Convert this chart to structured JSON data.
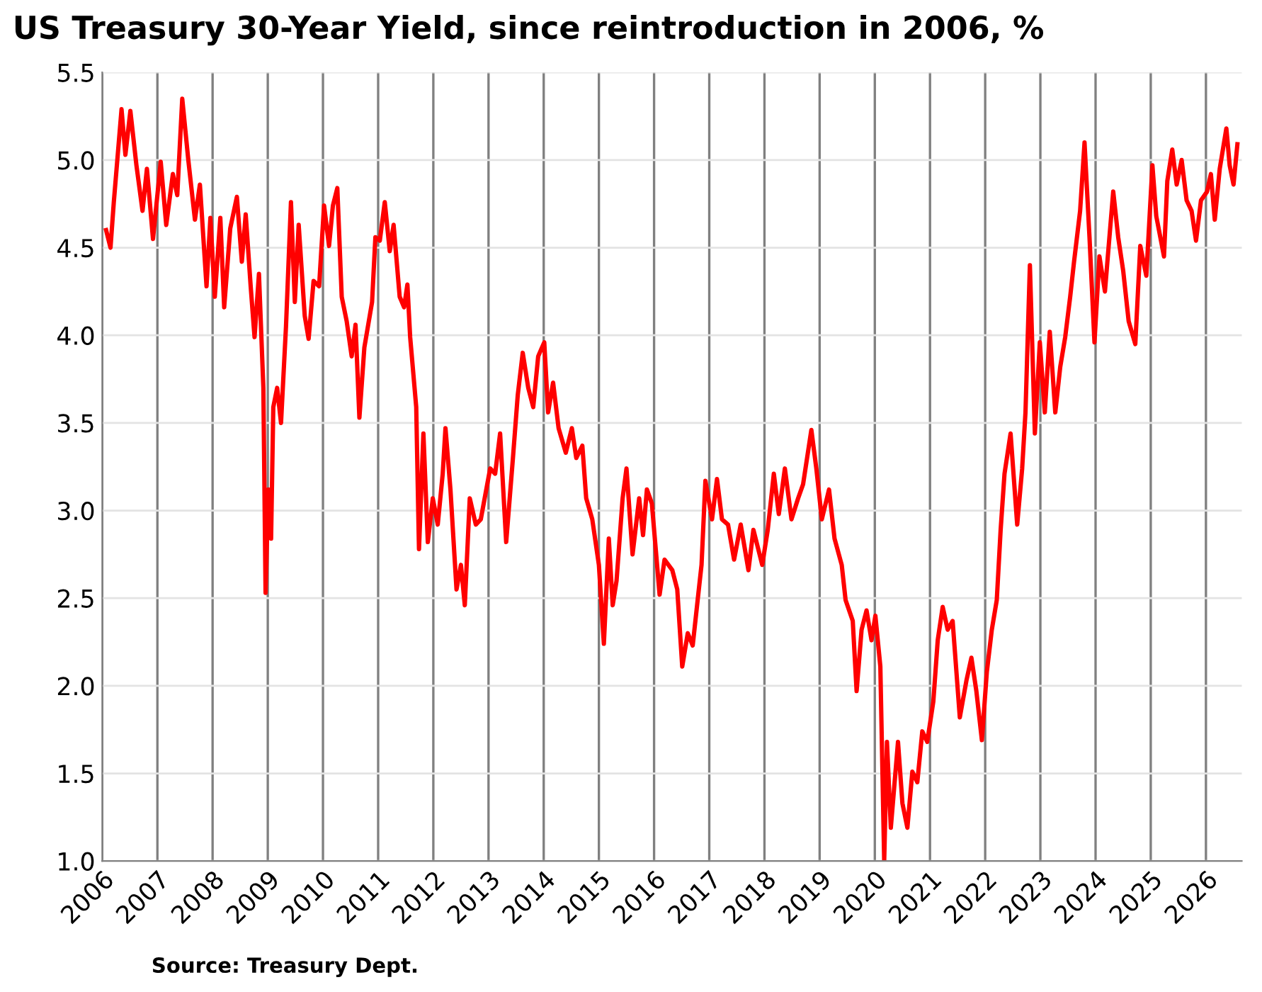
{
  "chart_data": {
    "type": "line",
    "title": "US Treasury 30-Year Yield, since reintroduction in 2006, %",
    "annotations": [
      "Source: Treasury Dept."
    ],
    "x": [
      2006.07,
      2006.15,
      2006.21,
      2006.35,
      2006.42,
      2006.51,
      2006.62,
      2006.73,
      2006.81,
      2006.92,
      2007.06,
      2007.16,
      2007.28,
      2007.36,
      2007.45,
      2007.56,
      2007.68,
      2007.77,
      2007.89,
      2007.96,
      2008.04,
      2008.14,
      2008.21,
      2008.32,
      2008.44,
      2008.53,
      2008.6,
      2008.69,
      2008.76,
      2008.84,
      2008.92,
      2008.96,
      2009.01,
      2009.06,
      2009.1,
      2009.17,
      2009.24,
      2009.33,
      2009.42,
      2009.49,
      2009.56,
      2009.67,
      2009.74,
      2009.83,
      2009.93,
      2010.02,
      2010.11,
      2010.18,
      2010.26,
      2010.34,
      2010.43,
      2010.52,
      2010.59,
      2010.66,
      2010.75,
      2010.89,
      2010.95,
      2011.03,
      2011.12,
      2011.21,
      2011.28,
      2011.39,
      2011.47,
      2011.53,
      2011.58,
      2011.69,
      2011.74,
      2011.82,
      2011.9,
      2011.99,
      2012.08,
      2012.17,
      2012.22,
      2012.31,
      2012.42,
      2012.5,
      2012.57,
      2012.66,
      2012.77,
      2012.86,
      2013.03,
      2013.12,
      2013.21,
      2013.32,
      2013.44,
      2013.53,
      2013.62,
      2013.72,
      2013.81,
      2013.9,
      2014.01,
      2014.08,
      2014.17,
      2014.27,
      2014.4,
      2014.51,
      2014.59,
      2014.7,
      2014.77,
      2014.88,
      2015.0,
      2015.09,
      2015.18,
      2015.25,
      2015.32,
      2015.43,
      2015.5,
      2015.61,
      2015.73,
      2015.8,
      2015.87,
      2015.96,
      2016.1,
      2016.19,
      2016.33,
      2016.42,
      2016.51,
      2016.61,
      2016.7,
      2016.79,
      2016.86,
      2016.93,
      2017.05,
      2017.14,
      2017.23,
      2017.34,
      2017.45,
      2017.57,
      2017.71,
      2017.8,
      2017.96,
      2018.06,
      2018.17,
      2018.26,
      2018.37,
      2018.49,
      2018.61,
      2018.7,
      2018.85,
      2018.94,
      2019.04,
      2019.17,
      2019.27,
      2019.4,
      2019.47,
      2019.6,
      2019.67,
      2019.76,
      2019.85,
      2019.94,
      2020.01,
      2020.1,
      2020.17,
      2020.22,
      2020.29,
      2020.42,
      2020.5,
      2020.59,
      2020.68,
      2020.77,
      2020.86,
      2020.95,
      2021.06,
      2021.14,
      2021.23,
      2021.32,
      2021.41,
      2021.54,
      2021.66,
      2021.75,
      2021.84,
      2021.94,
      2022.03,
      2022.12,
      2022.21,
      2022.28,
      2022.35,
      2022.46,
      2022.58,
      2022.67,
      2022.73,
      2022.81,
      2022.9,
      2022.99,
      2023.08,
      2023.17,
      2023.27,
      2023.36,
      2023.45,
      2023.54,
      2023.61,
      2023.72,
      2023.8,
      2023.89,
      2023.98,
      2024.07,
      2024.17,
      2024.23,
      2024.32,
      2024.41,
      2024.5,
      2024.6,
      2024.72,
      2024.81,
      2024.92,
      2025.03,
      2025.1,
      2025.24,
      2025.3,
      2025.39,
      2025.47,
      2025.56,
      2025.65,
      2025.74,
      2025.82,
      2025.91,
      2026.02,
      2026.09,
      2026.16,
      2026.25,
      2026.37,
      2026.43,
      2026.5,
      2026.57
    ],
    "series": [
      {
        "color": "#ff0000",
        "values": [
          4.6,
          4.5,
          4.76,
          5.29,
          5.03,
          5.28,
          4.97,
          4.71,
          4.95,
          4.55,
          4.99,
          4.63,
          4.92,
          4.8,
          5.35,
          5.0,
          4.66,
          4.86,
          4.28,
          4.67,
          4.22,
          4.67,
          4.16,
          4.61,
          4.79,
          4.42,
          4.69,
          4.28,
          3.99,
          4.35,
          3.7,
          2.53,
          3.12,
          2.84,
          3.59,
          3.7,
          3.5,
          4.05,
          4.76,
          4.19,
          4.63,
          4.11,
          3.98,
          4.31,
          4.28,
          4.74,
          4.51,
          4.74,
          4.84,
          4.22,
          4.08,
          3.88,
          4.06,
          3.53,
          3.93,
          4.19,
          4.56,
          4.54,
          4.76,
          4.48,
          4.63,
          4.22,
          4.16,
          4.29,
          3.99,
          3.59,
          2.78,
          3.44,
          2.82,
          3.07,
          2.92,
          3.21,
          3.47,
          3.12,
          2.55,
          2.69,
          2.46,
          3.07,
          2.92,
          2.95,
          3.24,
          3.21,
          3.44,
          2.82,
          3.29,
          3.66,
          3.9,
          3.7,
          3.59,
          3.88,
          3.96,
          3.56,
          3.73,
          3.47,
          3.33,
          3.47,
          3.3,
          3.37,
          3.07,
          2.95,
          2.69,
          2.24,
          2.84,
          2.46,
          2.6,
          3.07,
          3.24,
          2.75,
          3.07,
          2.86,
          3.12,
          3.04,
          2.52,
          2.72,
          2.66,
          2.55,
          2.11,
          2.3,
          2.23,
          2.49,
          2.69,
          3.17,
          2.95,
          3.18,
          2.95,
          2.92,
          2.72,
          2.92,
          2.66,
          2.89,
          2.69,
          2.89,
          3.21,
          2.98,
          3.24,
          2.95,
          3.07,
          3.15,
          3.46,
          3.24,
          2.95,
          3.12,
          2.84,
          2.69,
          2.49,
          2.37,
          1.97,
          2.32,
          2.43,
          2.26,
          2.4,
          2.11,
          1.0,
          1.68,
          1.19,
          1.68,
          1.33,
          1.19,
          1.51,
          1.45,
          1.74,
          1.68,
          1.91,
          2.26,
          2.45,
          2.32,
          2.37,
          1.82,
          2.03,
          2.16,
          1.97,
          1.69,
          2.08,
          2.32,
          2.49,
          2.89,
          3.21,
          3.44,
          2.92,
          3.24,
          3.56,
          4.4,
          3.44,
          3.96,
          3.56,
          4.02,
          3.56,
          3.82,
          3.99,
          4.22,
          4.42,
          4.71,
          5.1,
          4.56,
          3.96,
          4.45,
          4.25,
          4.48,
          4.82,
          4.56,
          4.37,
          4.08,
          3.95,
          4.51,
          4.34,
          4.97,
          4.68,
          4.45,
          4.88,
          5.06,
          4.86,
          5.0,
          4.77,
          4.71,
          4.54,
          4.77,
          4.82,
          4.92,
          4.66,
          4.95,
          5.18,
          4.97,
          4.86,
          5.09
        ]
      }
    ],
    "xlim": [
      2006,
      2026.65
    ],
    "xticks": [
      2006,
      2007,
      2008,
      2009,
      2010,
      2011,
      2012,
      2013,
      2014,
      2015,
      2016,
      2017,
      2018,
      2019,
      2020,
      2021,
      2022,
      2023,
      2024,
      2025,
      2026
    ],
    "ylim": [
      1,
      5.5
    ],
    "yticks": [
      {
        "value": 1,
        "label": "1.0"
      },
      {
        "value": 1.5,
        "label": "1.5"
      },
      {
        "value": 2,
        "label": "2.0"
      },
      {
        "value": 2.5,
        "label": "2.5"
      },
      {
        "value": 3,
        "label": "3.0"
      },
      {
        "value": 3.5,
        "label": "3.5"
      },
      {
        "value": 4,
        "label": "4.0"
      },
      {
        "value": 4.5,
        "label": "4.5"
      },
      {
        "value": 5,
        "label": "5.0"
      },
      {
        "value": 5.5,
        "label": "5.5"
      }
    ],
    "grid": true
  }
}
